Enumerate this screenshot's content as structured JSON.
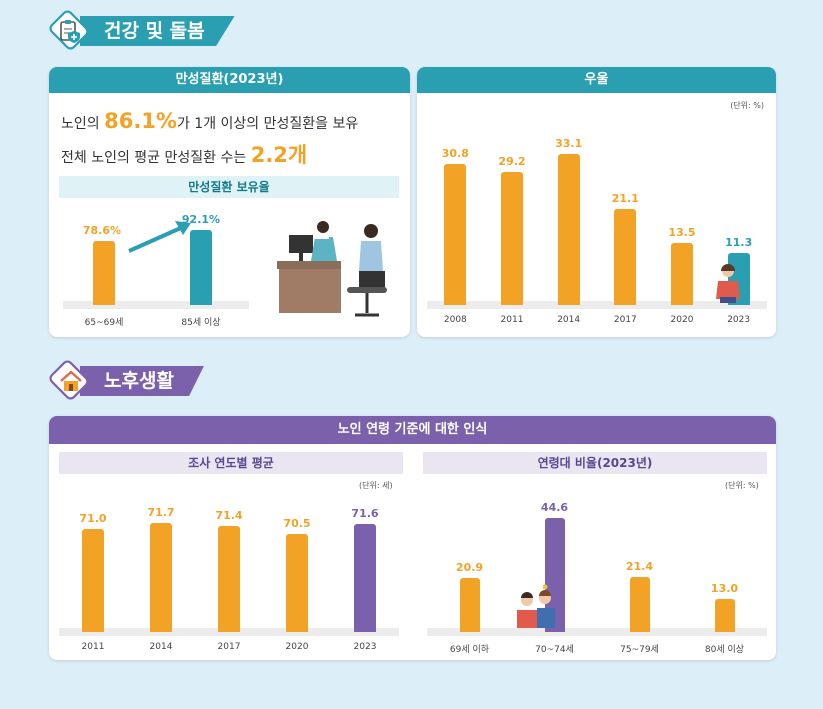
{
  "colors": {
    "orange": "#f2a326",
    "teal": "#2b9fb2",
    "purple": "#7b60ac",
    "teal_title": "#2b9fb2",
    "purple_title": "#7b60ac"
  },
  "health": {
    "section_title": "건강 및 돌봄",
    "chronic": {
      "title": "만성질환(2023년)",
      "line1": {
        "pre": "노인의 ",
        "highlight": "86.1%",
        "post": "가 1개 이상의 만성질환을 보유"
      },
      "line2": {
        "pre": "전체 노인의 평균 만성질환 수는 ",
        "highlight": "2.2개"
      },
      "subtitle": "만성질환 보유율",
      "chart_data": {
        "type": "bar",
        "categories": [
          "65~69세",
          "85세 이상"
        ],
        "values": [
          78.6,
          92.1
        ],
        "value_labels": [
          "78.6%",
          "92.1%"
        ],
        "colors": [
          "#f2a326",
          "#2b9fb2"
        ]
      }
    },
    "depression": {
      "title": "우울",
      "unit": "(단위: %)",
      "chart_data": {
        "type": "bar",
        "categories": [
          "2008",
          "2011",
          "2014",
          "2017",
          "2020",
          "2023"
        ],
        "values": [
          30.8,
          29.2,
          33.1,
          21.1,
          13.5,
          11.3
        ],
        "value_labels": [
          "30.8",
          "29.2",
          "33.1",
          "21.1",
          "13.5",
          "11.3"
        ],
        "colors": [
          "#f2a326",
          "#f2a326",
          "#f2a326",
          "#f2a326",
          "#f2a326",
          "#2b9fb2"
        ],
        "ylim": [
          0,
          35
        ]
      }
    }
  },
  "retirement": {
    "section_title": "노후생활",
    "perception": {
      "title": "노인 연령 기준에 대한 인식",
      "by_year": {
        "subtitle": "조사 연도별 평균",
        "unit": "(단위: 세)",
        "chart_data": {
          "type": "bar",
          "categories": [
            "2011",
            "2014",
            "2017",
            "2020",
            "2023"
          ],
          "values": [
            71.0,
            71.7,
            71.4,
            70.5,
            71.6
          ],
          "value_labels": [
            "71.0",
            "71.7",
            "71.4",
            "70.5",
            "71.6"
          ],
          "colors": [
            "#f2a326",
            "#f2a326",
            "#f2a326",
            "#f2a326",
            "#7b60ac"
          ],
          "ylim": [
            60,
            72
          ]
        }
      },
      "by_age": {
        "subtitle": "연령대 비율(2023년)",
        "unit": "(단위: %)",
        "chart_data": {
          "type": "bar",
          "categories": [
            "69세 이하",
            "70~74세",
            "75~79세",
            "80세 이상"
          ],
          "values": [
            20.9,
            44.6,
            21.4,
            13.0
          ],
          "value_labels": [
            "20.9",
            "44.6",
            "21.4",
            "13.0"
          ],
          "colors": [
            "#f2a326",
            "#7b60ac",
            "#f2a326",
            "#f2a326"
          ],
          "ylim": [
            0,
            46
          ]
        }
      }
    }
  }
}
